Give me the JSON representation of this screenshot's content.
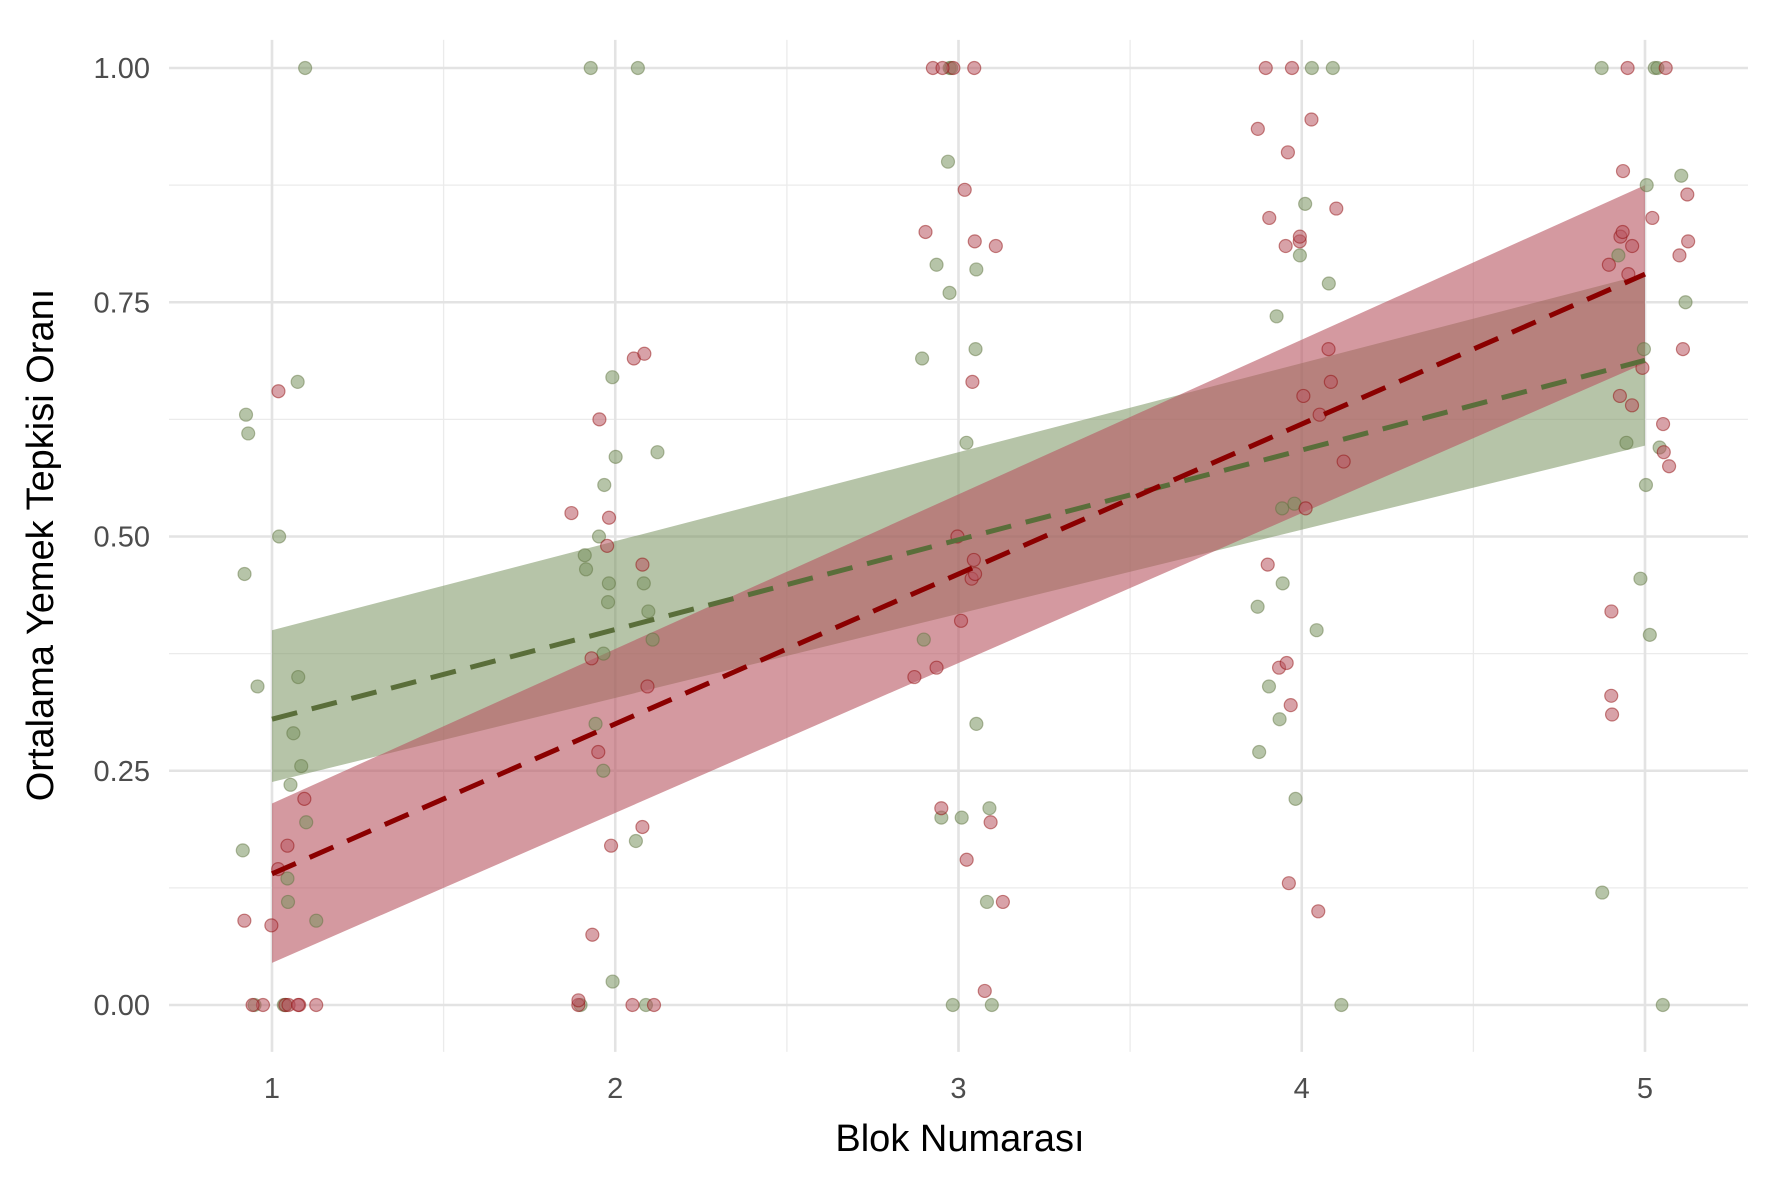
{
  "chart_data": {
    "type": "scatter",
    "xlabel": "Blok Numarası",
    "ylabel": "Ortalama Yemek Tepkisi Oranı",
    "x_ticks": [
      "1",
      "2",
      "3",
      "4",
      "5"
    ],
    "y_ticks": [
      "0.00",
      "0.25",
      "0.50",
      "0.75",
      "1.00"
    ],
    "xlim": [
      0.7,
      5.3
    ],
    "ylim": [
      -0.05,
      1.03
    ],
    "grid": true,
    "legend": "none",
    "series": [
      {
        "color": "#5a6e3a",
        "band_color": "#7a9460",
        "fit": {
          "x": [
            1,
            5
          ],
          "y": [
            0.305,
            0.688
          ]
        },
        "band": {
          "x": [
            1,
            5
          ],
          "lower": [
            0.238,
            0.597
          ],
          "upper": [
            0.4,
            0.78
          ]
        },
        "points": [
          {
            "x": 1,
            "y": 0.0
          },
          {
            "x": 1,
            "y": 0.0
          },
          {
            "x": 1,
            "y": 0.0
          },
          {
            "x": 1,
            "y": 0.09
          },
          {
            "x": 1,
            "y": 0.11
          },
          {
            "x": 1,
            "y": 0.135
          },
          {
            "x": 1,
            "y": 0.165
          },
          {
            "x": 1,
            "y": 0.195
          },
          {
            "x": 1,
            "y": 0.235
          },
          {
            "x": 1,
            "y": 0.255
          },
          {
            "x": 1,
            "y": 0.29
          },
          {
            "x": 1,
            "y": 0.34
          },
          {
            "x": 1,
            "y": 0.35
          },
          {
            "x": 1,
            "y": 0.46
          },
          {
            "x": 1,
            "y": 0.5
          },
          {
            "x": 1,
            "y": 0.61
          },
          {
            "x": 1,
            "y": 0.63
          },
          {
            "x": 1,
            "y": 0.665
          },
          {
            "x": 1,
            "y": 1.0
          },
          {
            "x": 2,
            "y": 0.0
          },
          {
            "x": 2,
            "y": 0.0
          },
          {
            "x": 2,
            "y": 0.025
          },
          {
            "x": 2,
            "y": 0.175
          },
          {
            "x": 2,
            "y": 0.25
          },
          {
            "x": 2,
            "y": 0.3
          },
          {
            "x": 2,
            "y": 0.375
          },
          {
            "x": 2,
            "y": 0.39
          },
          {
            "x": 2,
            "y": 0.42
          },
          {
            "x": 2,
            "y": 0.43
          },
          {
            "x": 2,
            "y": 0.45
          },
          {
            "x": 2,
            "y": 0.45
          },
          {
            "x": 2,
            "y": 0.465
          },
          {
            "x": 2,
            "y": 0.48
          },
          {
            "x": 2,
            "y": 0.5
          },
          {
            "x": 2,
            "y": 0.555
          },
          {
            "x": 2,
            "y": 0.585
          },
          {
            "x": 2,
            "y": 0.59
          },
          {
            "x": 2,
            "y": 0.67
          },
          {
            "x": 2,
            "y": 1.0
          },
          {
            "x": 2,
            "y": 1.0
          },
          {
            "x": 3,
            "y": 0.0
          },
          {
            "x": 3,
            "y": 0.0
          },
          {
            "x": 3,
            "y": 0.11
          },
          {
            "x": 3,
            "y": 0.2
          },
          {
            "x": 3,
            "y": 0.2
          },
          {
            "x": 3,
            "y": 0.21
          },
          {
            "x": 3,
            "y": 0.3
          },
          {
            "x": 3,
            "y": 0.39
          },
          {
            "x": 3,
            "y": 0.6
          },
          {
            "x": 3,
            "y": 0.69
          },
          {
            "x": 3,
            "y": 0.7
          },
          {
            "x": 3,
            "y": 0.76
          },
          {
            "x": 3,
            "y": 0.785
          },
          {
            "x": 3,
            "y": 0.79
          },
          {
            "x": 3,
            "y": 0.9
          },
          {
            "x": 3,
            "y": 1.0
          },
          {
            "x": 3,
            "y": 1.0
          },
          {
            "x": 4,
            "y": 0.0
          },
          {
            "x": 4,
            "y": 0.22
          },
          {
            "x": 4,
            "y": 0.27
          },
          {
            "x": 4,
            "y": 0.305
          },
          {
            "x": 4,
            "y": 0.34
          },
          {
            "x": 4,
            "y": 0.4
          },
          {
            "x": 4,
            "y": 0.425
          },
          {
            "x": 4,
            "y": 0.45
          },
          {
            "x": 4,
            "y": 0.53
          },
          {
            "x": 4,
            "y": 0.535
          },
          {
            "x": 4,
            "y": 0.735
          },
          {
            "x": 4,
            "y": 0.77
          },
          {
            "x": 4,
            "y": 0.8
          },
          {
            "x": 4,
            "y": 0.855
          },
          {
            "x": 4,
            "y": 1.0
          },
          {
            "x": 4,
            "y": 1.0
          },
          {
            "x": 5,
            "y": 0.0
          },
          {
            "x": 5,
            "y": 0.12
          },
          {
            "x": 5,
            "y": 0.395
          },
          {
            "x": 5,
            "y": 0.455
          },
          {
            "x": 5,
            "y": 0.555
          },
          {
            "x": 5,
            "y": 0.595
          },
          {
            "x": 5,
            "y": 0.6
          },
          {
            "x": 5,
            "y": 0.7
          },
          {
            "x": 5,
            "y": 0.75
          },
          {
            "x": 5,
            "y": 0.8
          },
          {
            "x": 5,
            "y": 0.875
          },
          {
            "x": 5,
            "y": 0.885
          },
          {
            "x": 5,
            "y": 1.0
          },
          {
            "x": 5,
            "y": 1.0
          },
          {
            "x": 5,
            "y": 1.0
          }
        ]
      },
      {
        "color": "#8b0000",
        "band_color": "#b85560",
        "fit": {
          "x": [
            1,
            5
          ],
          "y": [
            0.14,
            0.78
          ]
        },
        "band": {
          "x": [
            1,
            5
          ],
          "lower": [
            0.045,
            0.685
          ],
          "upper": [
            0.215,
            0.875
          ]
        },
        "points": [
          {
            "x": 1,
            "y": 0.0
          },
          {
            "x": 1,
            "y": 0.0
          },
          {
            "x": 1,
            "y": 0.0
          },
          {
            "x": 1,
            "y": 0.0
          },
          {
            "x": 1,
            "y": 0.0
          },
          {
            "x": 1,
            "y": 0.0
          },
          {
            "x": 1,
            "y": 0.0
          },
          {
            "x": 1,
            "y": 0.085
          },
          {
            "x": 1,
            "y": 0.09
          },
          {
            "x": 1,
            "y": 0.145
          },
          {
            "x": 1,
            "y": 0.17
          },
          {
            "x": 1,
            "y": 0.22
          },
          {
            "x": 1,
            "y": 0.655
          },
          {
            "x": 2,
            "y": 0.0
          },
          {
            "x": 2,
            "y": 0.0
          },
          {
            "x": 2,
            "y": 0.0
          },
          {
            "x": 2,
            "y": 0.005
          },
          {
            "x": 2,
            "y": 0.075
          },
          {
            "x": 2,
            "y": 0.17
          },
          {
            "x": 2,
            "y": 0.19
          },
          {
            "x": 2,
            "y": 0.27
          },
          {
            "x": 2,
            "y": 0.34
          },
          {
            "x": 2,
            "y": 0.37
          },
          {
            "x": 2,
            "y": 0.47
          },
          {
            "x": 2,
            "y": 0.49
          },
          {
            "x": 2,
            "y": 0.52
          },
          {
            "x": 2,
            "y": 0.525
          },
          {
            "x": 2,
            "y": 0.625
          },
          {
            "x": 2,
            "y": 0.69
          },
          {
            "x": 2,
            "y": 0.695
          },
          {
            "x": 3,
            "y": 0.015
          },
          {
            "x": 3,
            "y": 0.11
          },
          {
            "x": 3,
            "y": 0.155
          },
          {
            "x": 3,
            "y": 0.195
          },
          {
            "x": 3,
            "y": 0.21
          },
          {
            "x": 3,
            "y": 0.35
          },
          {
            "x": 3,
            "y": 0.36
          },
          {
            "x": 3,
            "y": 0.41
          },
          {
            "x": 3,
            "y": 0.455
          },
          {
            "x": 3,
            "y": 0.46
          },
          {
            "x": 3,
            "y": 0.475
          },
          {
            "x": 3,
            "y": 0.5
          },
          {
            "x": 3,
            "y": 0.665
          },
          {
            "x": 3,
            "y": 0.81
          },
          {
            "x": 3,
            "y": 0.815
          },
          {
            "x": 3,
            "y": 0.825
          },
          {
            "x": 3,
            "y": 0.87
          },
          {
            "x": 3,
            "y": 1.0
          },
          {
            "x": 3,
            "y": 1.0
          },
          {
            "x": 3,
            "y": 1.0
          },
          {
            "x": 3,
            "y": 1.0
          },
          {
            "x": 4,
            "y": 0.1
          },
          {
            "x": 4,
            "y": 0.13
          },
          {
            "x": 4,
            "y": 0.32
          },
          {
            "x": 4,
            "y": 0.36
          },
          {
            "x": 4,
            "y": 0.365
          },
          {
            "x": 4,
            "y": 0.47
          },
          {
            "x": 4,
            "y": 0.53
          },
          {
            "x": 4,
            "y": 0.58
          },
          {
            "x": 4,
            "y": 0.63
          },
          {
            "x": 4,
            "y": 0.65
          },
          {
            "x": 4,
            "y": 0.665
          },
          {
            "x": 4,
            "y": 0.7
          },
          {
            "x": 4,
            "y": 0.81
          },
          {
            "x": 4,
            "y": 0.815
          },
          {
            "x": 4,
            "y": 0.82
          },
          {
            "x": 4,
            "y": 0.84
          },
          {
            "x": 4,
            "y": 0.85
          },
          {
            "x": 4,
            "y": 0.91
          },
          {
            "x": 4,
            "y": 0.935
          },
          {
            "x": 4,
            "y": 0.945
          },
          {
            "x": 4,
            "y": 1.0
          },
          {
            "x": 4,
            "y": 1.0
          },
          {
            "x": 5,
            "y": 0.31
          },
          {
            "x": 5,
            "y": 0.33
          },
          {
            "x": 5,
            "y": 0.42
          },
          {
            "x": 5,
            "y": 0.575
          },
          {
            "x": 5,
            "y": 0.59
          },
          {
            "x": 5,
            "y": 0.62
          },
          {
            "x": 5,
            "y": 0.64
          },
          {
            "x": 5,
            "y": 0.65
          },
          {
            "x": 5,
            "y": 0.68
          },
          {
            "x": 5,
            "y": 0.7
          },
          {
            "x": 5,
            "y": 0.78
          },
          {
            "x": 5,
            "y": 0.79
          },
          {
            "x": 5,
            "y": 0.8
          },
          {
            "x": 5,
            "y": 0.81
          },
          {
            "x": 5,
            "y": 0.815
          },
          {
            "x": 5,
            "y": 0.82
          },
          {
            "x": 5,
            "y": 0.825
          },
          {
            "x": 5,
            "y": 0.84
          },
          {
            "x": 5,
            "y": 0.865
          },
          {
            "x": 5,
            "y": 0.89
          },
          {
            "x": 5,
            "y": 1.0
          },
          {
            "x": 5,
            "y": 1.0
          }
        ]
      }
    ]
  }
}
